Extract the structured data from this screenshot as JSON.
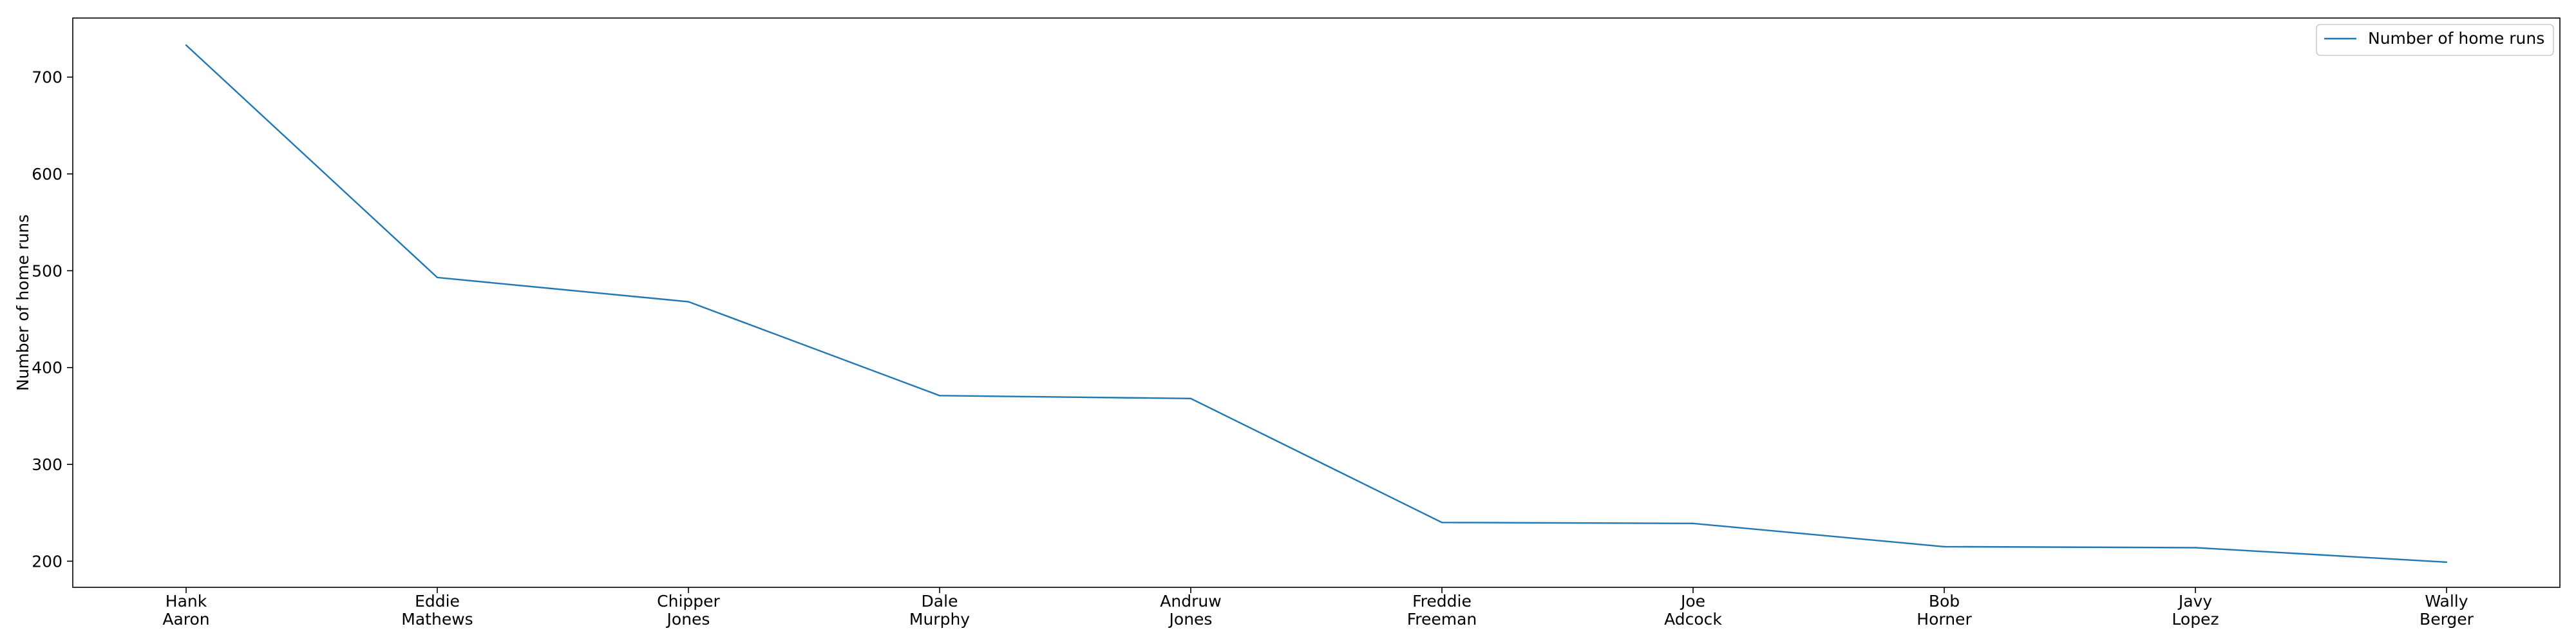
{
  "chart_data": {
    "type": "line",
    "title": "",
    "xlabel": "",
    "ylabel": "Number of home runs",
    "categories": [
      "Hank\nAaron",
      "Eddie\nMathews",
      "Chipper\nJones",
      "Dale\nMurphy",
      "Andruw\nJones",
      "Freddie\nFreeman",
      "Joe\nAdcock",
      "Bob\nHorner",
      "Javy\nLopez",
      "Wally\nBerger"
    ],
    "series": [
      {
        "name": "Number of home runs",
        "values": [
          733,
          493,
          468,
          371,
          368,
          240,
          239,
          215,
          214,
          199
        ]
      }
    ],
    "yticks": [
      200,
      300,
      400,
      500,
      600,
      700
    ],
    "ylim": [
      173,
      761
    ],
    "grid": false,
    "legend": {
      "position": "top-right"
    },
    "colors": {
      "line": "#1f77b4",
      "axis": "#000000",
      "legend_border": "#cccccc"
    }
  }
}
